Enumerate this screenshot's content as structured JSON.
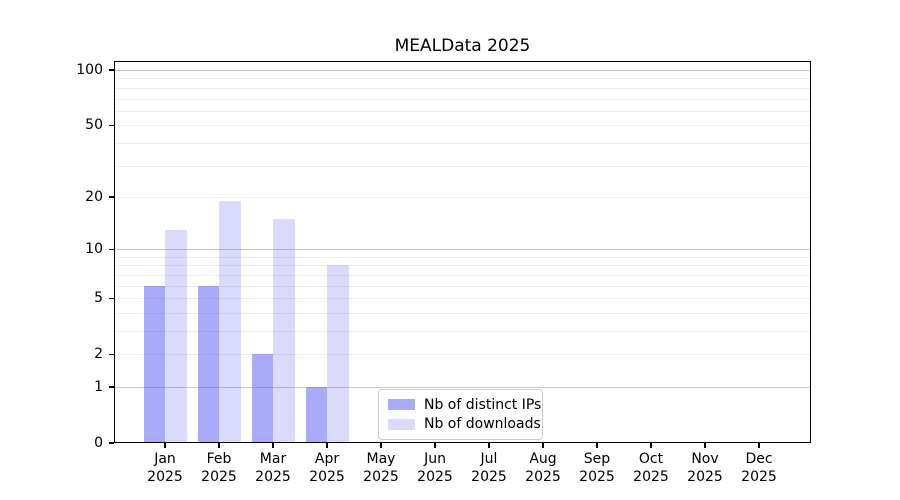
{
  "chart_data": {
    "type": "bar",
    "title": "MEALData 2025",
    "x_axis": {
      "months": [
        "Jan",
        "Feb",
        "Mar",
        "Apr",
        "May",
        "Jun",
        "Jul",
        "Aug",
        "Sep",
        "Oct",
        "Nov",
        "Dec"
      ],
      "year": "2025"
    },
    "y_axis": {
      "scale": "log1p",
      "ticks": [
        0,
        1,
        2,
        5,
        10,
        20,
        50,
        100
      ],
      "max": 112
    },
    "series": [
      {
        "name": "Nb of distinct IPs",
        "color": "#5555f5",
        "alpha": 0.5,
        "hex_on_white": "#aaaafa",
        "values": [
          6,
          6,
          2,
          1,
          0,
          0,
          0,
          0,
          0,
          0,
          0,
          0
        ]
      },
      {
        "name": "Nb of downloads",
        "color": "#5555f5",
        "alpha": 0.22,
        "hex_on_white": "#dbdbfc",
        "values": [
          13,
          19,
          15,
          8,
          0,
          0,
          0,
          0,
          0,
          0,
          0,
          0
        ]
      }
    ],
    "grid": {
      "major_values": [
        1,
        10,
        100
      ],
      "minor_values": [
        2,
        3,
        4,
        5,
        6,
        7,
        8,
        9,
        20,
        30,
        40,
        50,
        60,
        70,
        80,
        90
      ],
      "major_color": "#c8c8c8",
      "minor_color": "#ececec"
    },
    "legend": {
      "position": "lower-center"
    }
  }
}
